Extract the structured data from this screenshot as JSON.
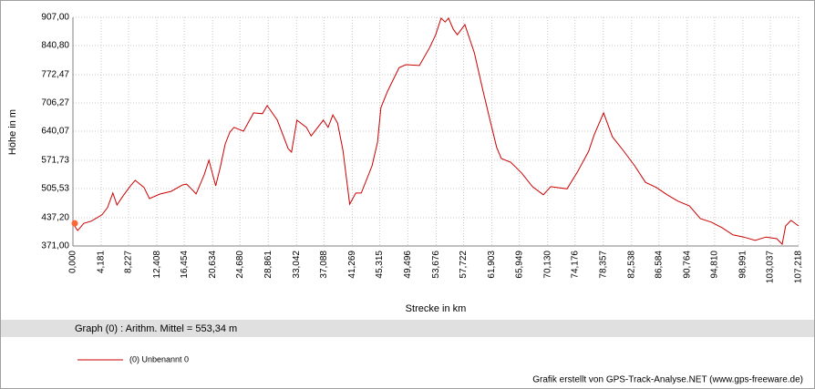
{
  "chart_data": {
    "type": "line",
    "y_label": "Höhe  in  m",
    "x_label": "Strecke  in  km",
    "x": [
      0,
      0.7,
      1.6,
      2.7,
      4.3,
      5.1,
      5.9,
      6.5,
      7.4,
      8.4,
      9.2,
      10.5,
      11.3,
      12.9,
      14.5,
      16.2,
      16.8,
      17.5,
      18.2,
      19.4,
      20.1,
      21.1,
      21.8,
      22.5,
      23.2,
      23.8,
      25.2,
      26.7,
      28.0,
      28.7,
      30.2,
      31.8,
      32.3,
      33.1,
      34.5,
      35.2,
      37.0,
      37.7,
      38.4,
      39.1,
      39.9,
      40.9,
      41.8,
      42.6,
      44.2,
      45.0,
      45.5,
      46.5,
      48.2,
      49.2,
      51.2,
      52.7,
      53.6,
      54.4,
      55.0,
      55.5,
      56.2,
      56.8,
      57.9,
      59.3,
      60.6,
      61.4,
      62.6,
      63.3,
      64.7,
      66.3,
      67.9,
      69.5,
      70.6,
      73.0,
      74.6,
      76.2,
      77.0,
      78.4,
      79.7,
      81.4,
      83.0,
      84.6,
      86.2,
      87.8,
      89.4,
      91.1,
      92.7,
      94.3,
      95.9,
      97.5,
      99.1,
      100.8,
      102.4,
      104.0,
      104.8,
      105.3,
      106.1,
      107.2
    ],
    "series": [
      {
        "name": "(0) Unbenannt 0",
        "color": "#cc0000",
        "values": [
          424,
          407,
          424,
          429,
          444,
          461,
          495,
          467,
          488,
          510,
          525,
          508,
          482,
          493,
          499,
          514,
          516,
          505,
          493,
          538,
          572,
          512,
          557,
          610,
          638,
          649,
          640,
          683,
          681,
          700,
          666,
          599,
          591,
          666,
          649,
          629,
          666,
          649,
          678,
          659,
          595,
          469,
          495,
          495,
          559,
          614,
          695,
          734,
          789,
          796,
          794,
          836,
          866,
          905,
          896,
          905,
          879,
          866,
          890,
          824,
          734,
          681,
          602,
          576,
          567,
          542,
          510,
          491,
          510,
          505,
          546,
          593,
          631,
          683,
          627,
          593,
          559,
          520,
          508,
          491,
          476,
          465,
          435,
          427,
          414,
          397,
          392,
          384,
          392,
          388,
          375,
          418,
          431,
          418
        ]
      }
    ],
    "start_marker_color": "#ff6633",
    "xlim": [
      0,
      107.218
    ],
    "ylim": [
      371,
      907
    ],
    "xticks": [
      {
        "value": 0,
        "label": "0,000"
      },
      {
        "value": 4.181,
        "label": "4,181"
      },
      {
        "value": 8.227,
        "label": "8,227"
      },
      {
        "value": 12.408,
        "label": "12,408"
      },
      {
        "value": 16.454,
        "label": "16,454"
      },
      {
        "value": 20.634,
        "label": "20,634"
      },
      {
        "value": 24.68,
        "label": "24,680"
      },
      {
        "value": 28.861,
        "label": "28,861"
      },
      {
        "value": 33.042,
        "label": "33,042"
      },
      {
        "value": 37.088,
        "label": "37,088"
      },
      {
        "value": 41.269,
        "label": "41,269"
      },
      {
        "value": 45.315,
        "label": "45,315"
      },
      {
        "value": 49.496,
        "label": "49,496"
      },
      {
        "value": 53.676,
        "label": "53,676"
      },
      {
        "value": 57.722,
        "label": "57,722"
      },
      {
        "value": 61.903,
        "label": "61,903"
      },
      {
        "value": 65.949,
        "label": "65,949"
      },
      {
        "value": 70.13,
        "label": "70,130"
      },
      {
        "value": 74.176,
        "label": "74,176"
      },
      {
        "value": 78.357,
        "label": "78,357"
      },
      {
        "value": 82.538,
        "label": "82,538"
      },
      {
        "value": 86.584,
        "label": "86,584"
      },
      {
        "value": 90.764,
        "label": "90,764"
      },
      {
        "value": 94.81,
        "label": "94,810"
      },
      {
        "value": 98.991,
        "label": "98,991"
      },
      {
        "value": 103.037,
        "label": "103,037"
      },
      {
        "value": 107.218,
        "label": "107,218"
      }
    ],
    "yticks": [
      {
        "value": 371,
        "label": "371,00"
      },
      {
        "value": 437.2,
        "label": "437,20"
      },
      {
        "value": 505.53,
        "label": "505,53"
      },
      {
        "value": 571.73,
        "label": "571,73"
      },
      {
        "value": 640.07,
        "label": "640,07"
      },
      {
        "value": 706.27,
        "label": "706,27"
      },
      {
        "value": 772.47,
        "label": "772,47"
      },
      {
        "value": 840.8,
        "label": "840,80"
      },
      {
        "value": 907,
        "label": "907,00"
      }
    ],
    "grid": true
  },
  "stats": "Graph (0) :  Arithm. Mittel = 553,34 m",
  "credit": "Grafik erstellt von GPS-Track-Analyse.NET (www.gps-freeware.de)"
}
